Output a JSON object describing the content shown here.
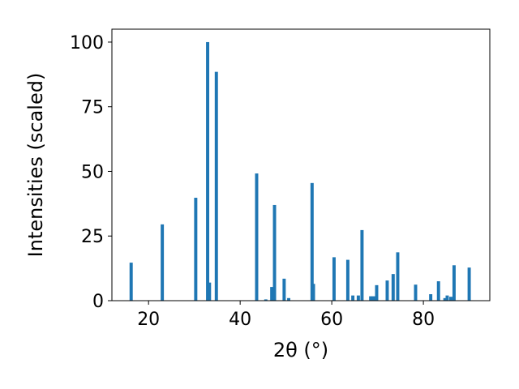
{
  "chart_data": {
    "type": "bar",
    "xlabel": "2θ (°)",
    "ylabel": "Intensities (scaled)",
    "xlim": [
      12,
      94.5
    ],
    "ylim": [
      0,
      105
    ],
    "xticks": [
      20,
      40,
      60,
      80
    ],
    "yticks": [
      0,
      25,
      50,
      75,
      100
    ],
    "bar_width": 0.7,
    "bar_color": "#1f77b4",
    "grid": false,
    "bars": [
      {
        "x": 16.2,
        "y": 14.7
      },
      {
        "x": 23.0,
        "y": 29.5
      },
      {
        "x": 30.3,
        "y": 39.8
      },
      {
        "x": 32.9,
        "y": 100.0
      },
      {
        "x": 33.3,
        "y": 7.0
      },
      {
        "x": 34.8,
        "y": 88.5
      },
      {
        "x": 43.6,
        "y": 49.2
      },
      {
        "x": 45.6,
        "y": 0.5
      },
      {
        "x": 46.9,
        "y": 5.3
      },
      {
        "x": 47.5,
        "y": 37.0
      },
      {
        "x": 49.6,
        "y": 8.5
      },
      {
        "x": 50.6,
        "y": 1.0
      },
      {
        "x": 55.7,
        "y": 45.5
      },
      {
        "x": 56.0,
        "y": 6.5
      },
      {
        "x": 60.5,
        "y": 16.8
      },
      {
        "x": 63.5,
        "y": 15.8
      },
      {
        "x": 64.6,
        "y": 2.0
      },
      {
        "x": 65.8,
        "y": 2.0
      },
      {
        "x": 66.6,
        "y": 27.3
      },
      {
        "x": 68.5,
        "y": 1.7
      },
      {
        "x": 69.1,
        "y": 1.7
      },
      {
        "x": 69.8,
        "y": 6.0
      },
      {
        "x": 72.1,
        "y": 7.8
      },
      {
        "x": 73.4,
        "y": 10.3
      },
      {
        "x": 74.4,
        "y": 18.7
      },
      {
        "x": 78.3,
        "y": 6.2
      },
      {
        "x": 81.6,
        "y": 2.5
      },
      {
        "x": 83.3,
        "y": 7.5
      },
      {
        "x": 84.7,
        "y": 1.0
      },
      {
        "x": 85.2,
        "y": 2.0
      },
      {
        "x": 86.0,
        "y": 1.5
      },
      {
        "x": 86.7,
        "y": 13.7
      },
      {
        "x": 90.0,
        "y": 12.8
      }
    ]
  }
}
